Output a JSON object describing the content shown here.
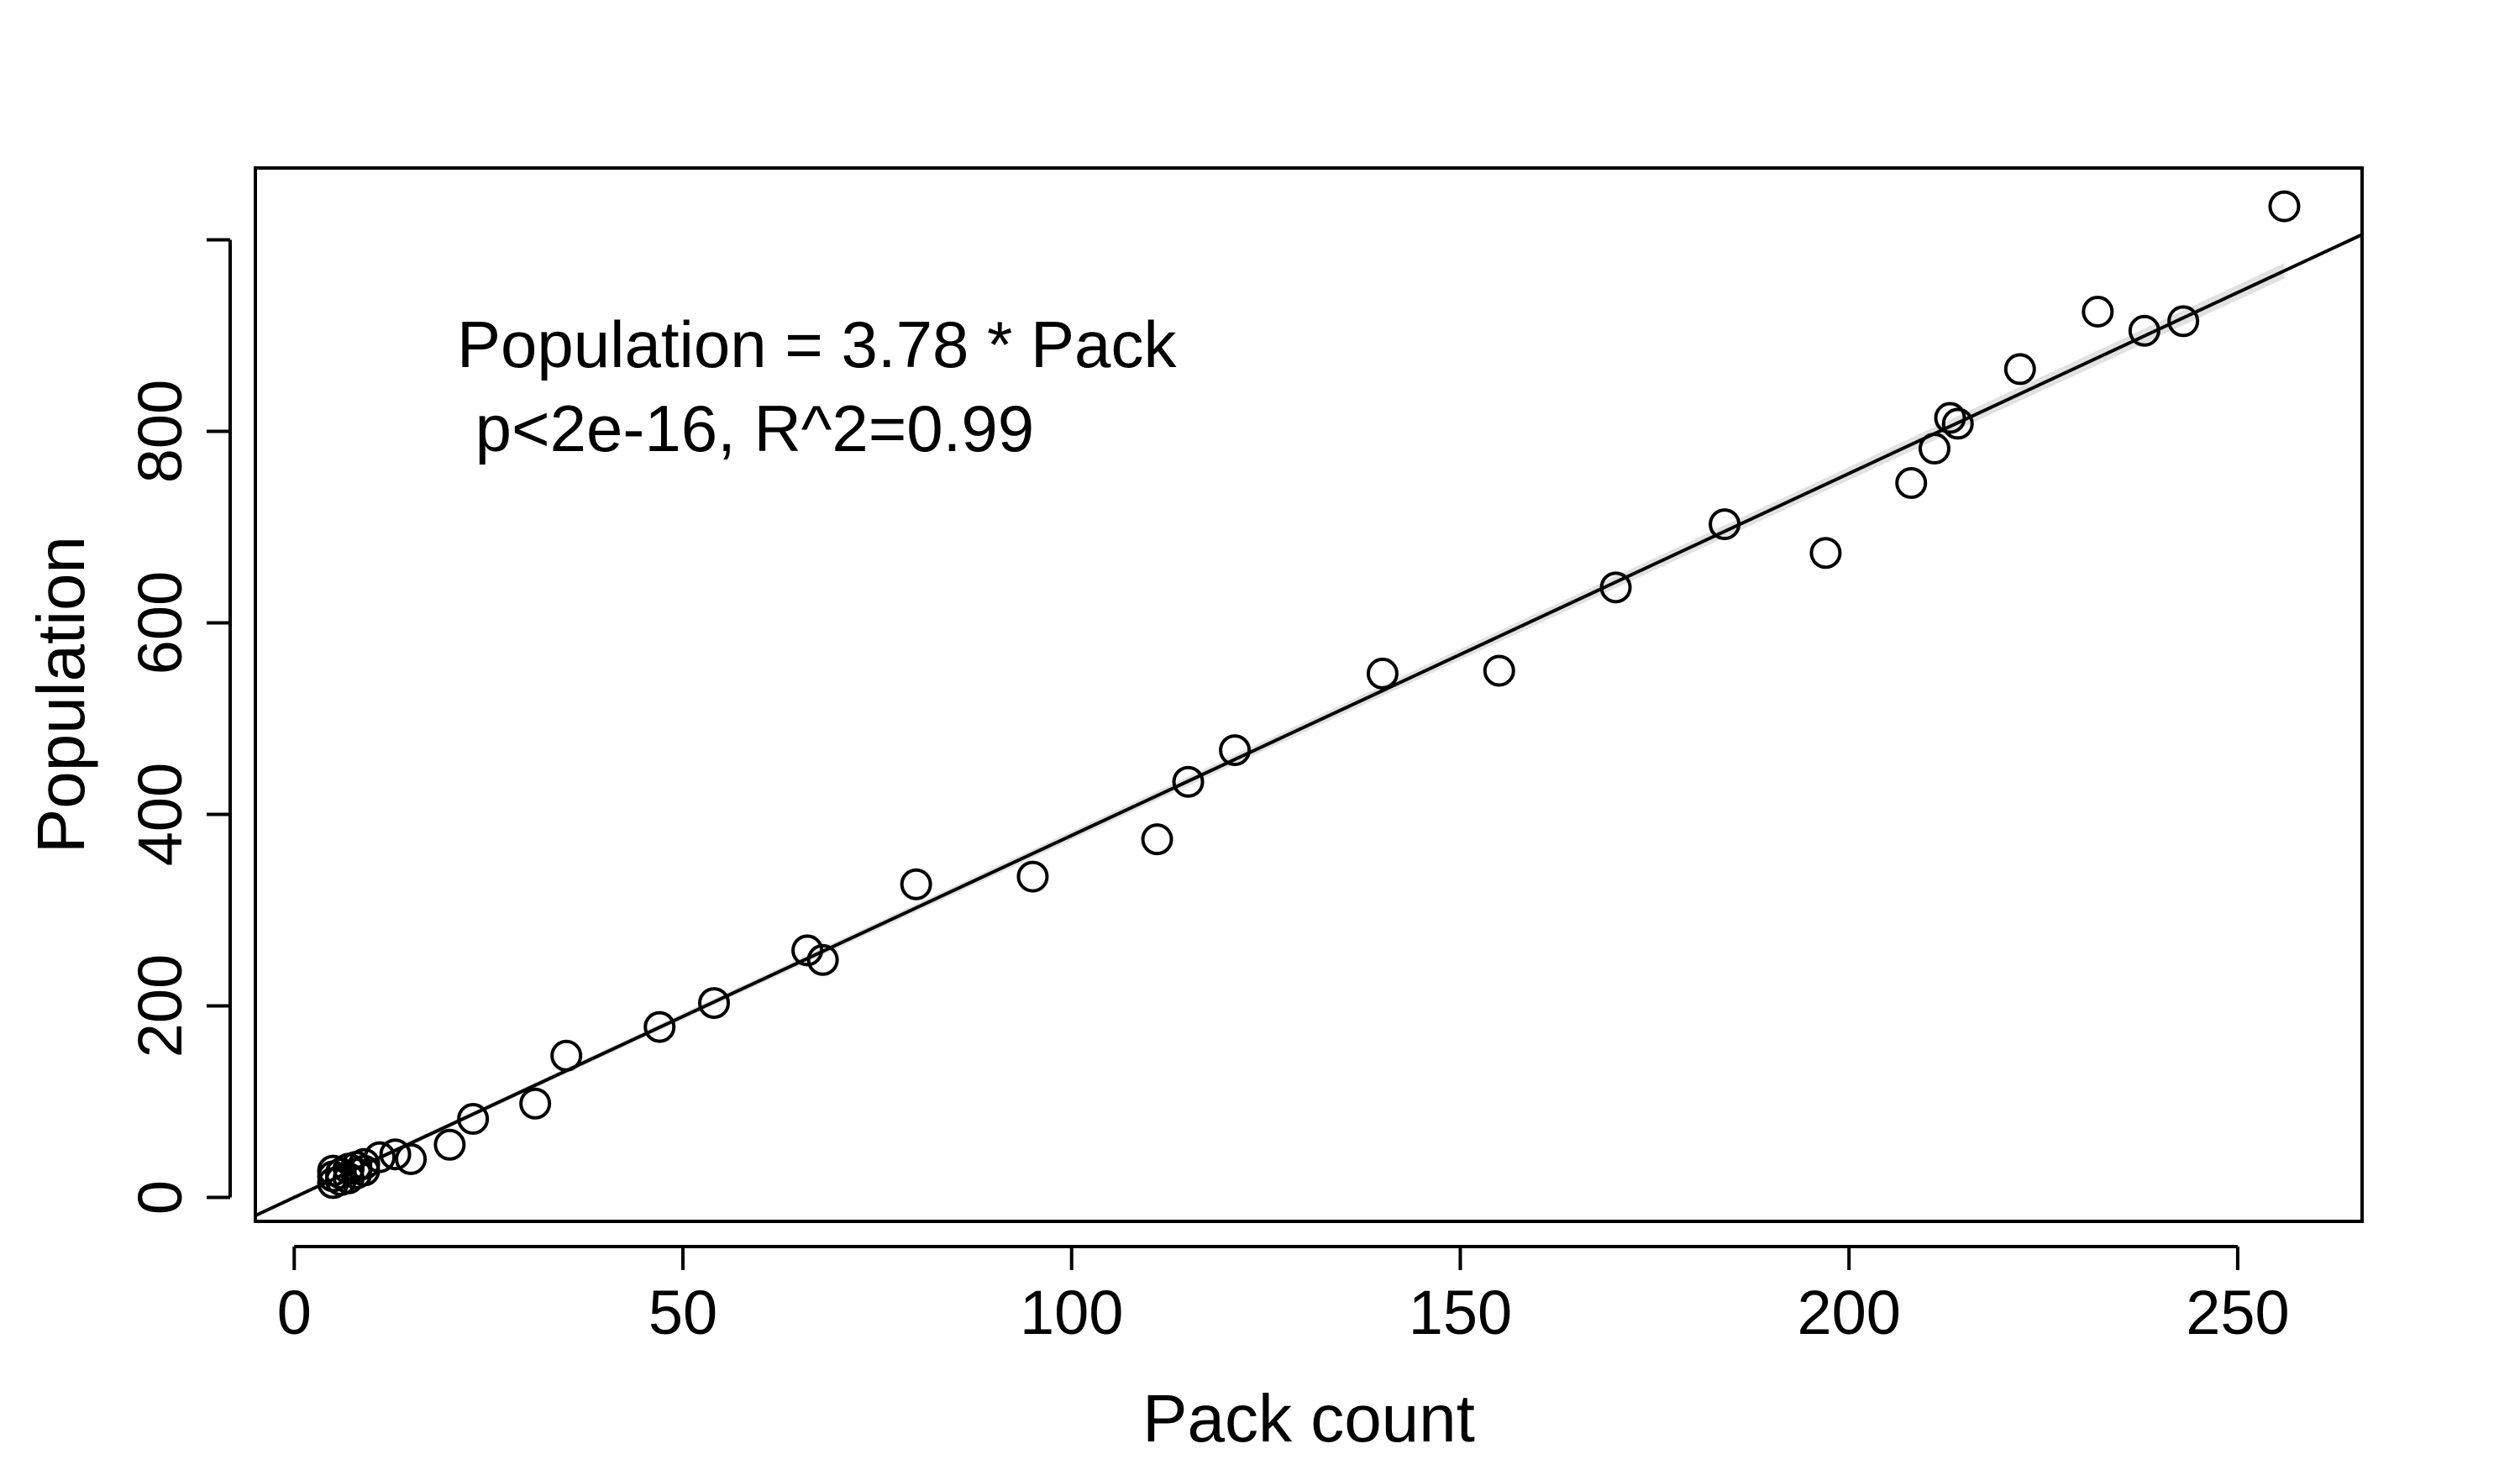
{
  "chart_data": {
    "type": "scatter",
    "title": "",
    "xlabel": "Pack count",
    "ylabel": "Population",
    "xlim": [
      -5,
      266
    ],
    "ylim": [
      -25,
      1075
    ],
    "xticks": [
      0,
      50,
      100,
      150,
      200,
      250
    ],
    "yticks": [
      0,
      200,
      400,
      600,
      800
    ],
    "grid": false,
    "annotation": {
      "line1": "Population = 3.78 * Pack",
      "line2": " p<2e-16, R^2=0.99"
    },
    "fit": {
      "slope": 3.78,
      "intercept": 0,
      "band_half_width": 8
    },
    "points": [
      {
        "x": 5,
        "y": 15
      },
      {
        "x": 5,
        "y": 22
      },
      {
        "x": 5,
        "y": 28
      },
      {
        "x": 6,
        "y": 18
      },
      {
        "x": 6,
        "y": 25
      },
      {
        "x": 7,
        "y": 20
      },
      {
        "x": 7,
        "y": 30
      },
      {
        "x": 8,
        "y": 25
      },
      {
        "x": 8,
        "y": 32
      },
      {
        "x": 9,
        "y": 28
      },
      {
        "x": 9,
        "y": 35
      },
      {
        "x": 11,
        "y": 42
      },
      {
        "x": 13,
        "y": 45
      },
      {
        "x": 15,
        "y": 40
      },
      {
        "x": 20,
        "y": 55
      },
      {
        "x": 23,
        "y": 82
      },
      {
        "x": 31,
        "y": 98
      },
      {
        "x": 35,
        "y": 148
      },
      {
        "x": 47,
        "y": 178
      },
      {
        "x": 54,
        "y": 203
      },
      {
        "x": 66,
        "y": 258
      },
      {
        "x": 68,
        "y": 248
      },
      {
        "x": 80,
        "y": 327
      },
      {
        "x": 95,
        "y": 335
      },
      {
        "x": 111,
        "y": 374
      },
      {
        "x": 115,
        "y": 434
      },
      {
        "x": 121,
        "y": 467
      },
      {
        "x": 140,
        "y": 547
      },
      {
        "x": 155,
        "y": 550
      },
      {
        "x": 170,
        "y": 637
      },
      {
        "x": 184,
        "y": 703
      },
      {
        "x": 197,
        "y": 673
      },
      {
        "x": 208,
        "y": 746
      },
      {
        "x": 211,
        "y": 782
      },
      {
        "x": 213,
        "y": 814
      },
      {
        "x": 214,
        "y": 808
      },
      {
        "x": 222,
        "y": 865
      },
      {
        "x": 232,
        "y": 925
      },
      {
        "x": 238,
        "y": 905
      },
      {
        "x": 243,
        "y": 915
      },
      {
        "x": 256,
        "y": 1035
      }
    ]
  }
}
